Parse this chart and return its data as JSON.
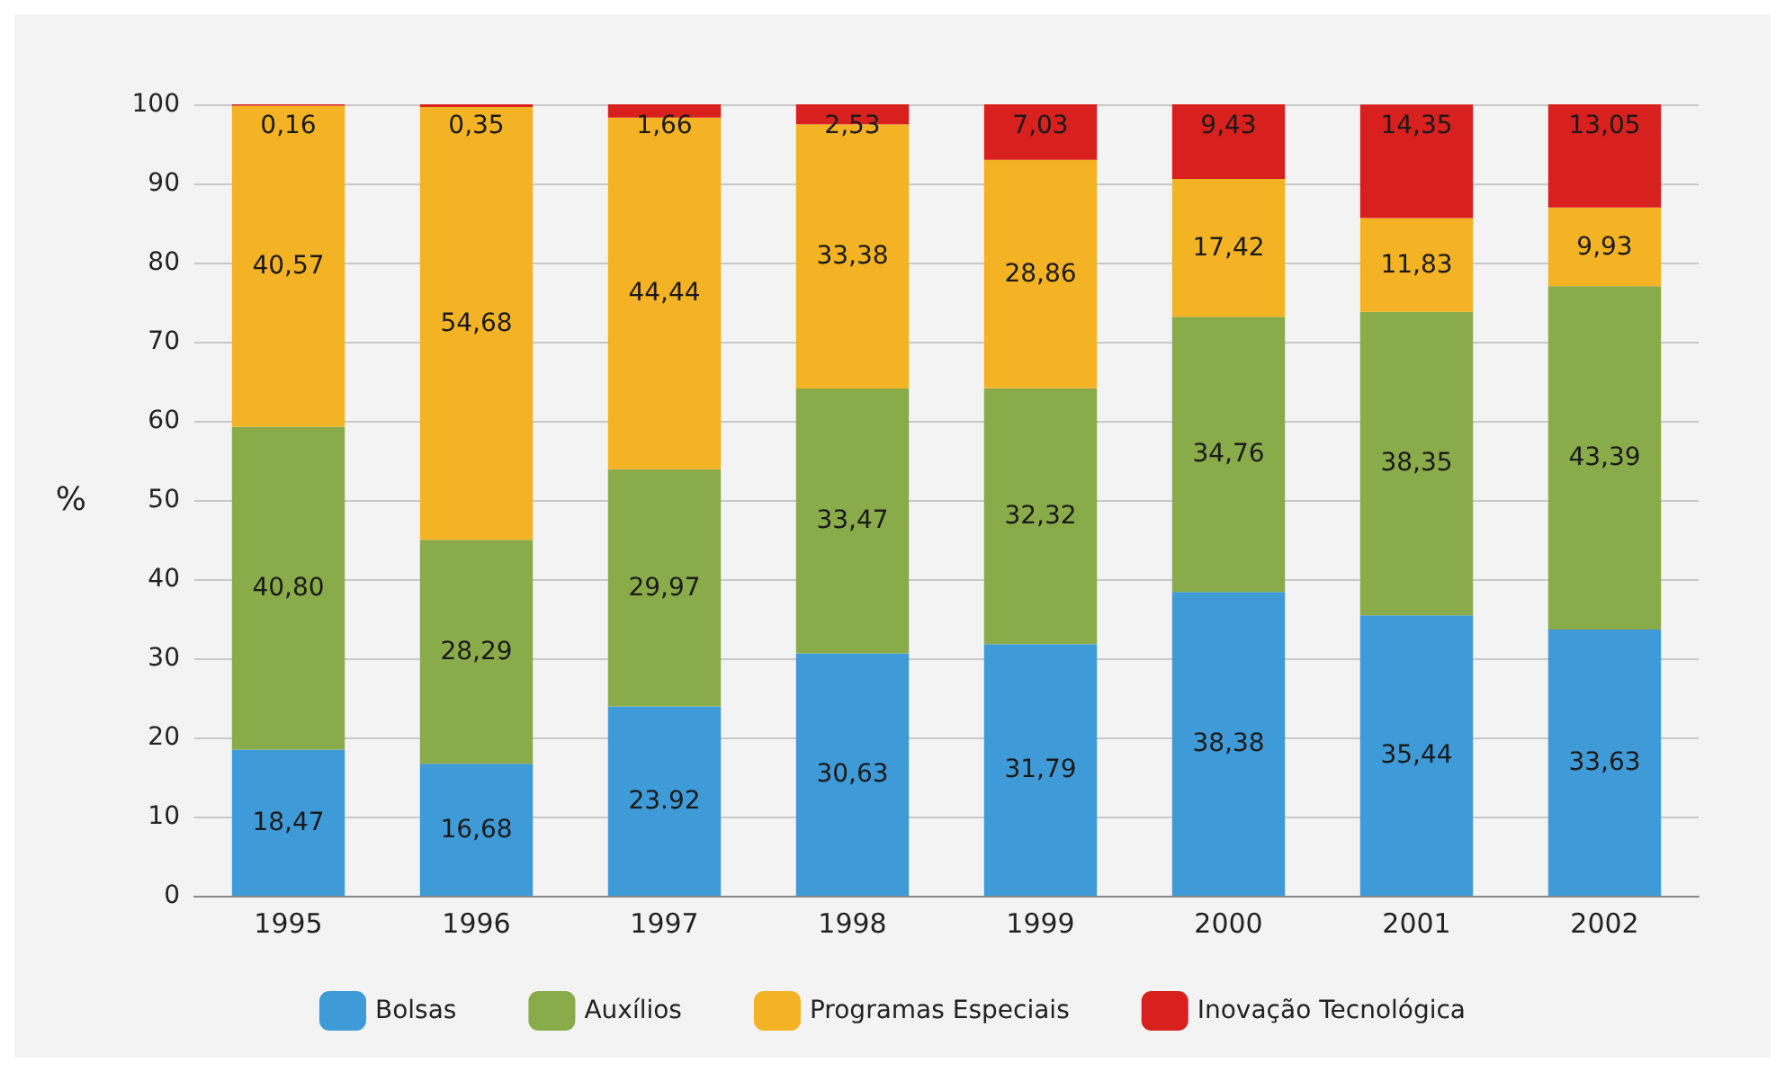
{
  "chart_data": {
    "type": "bar",
    "stacked": true,
    "ylabel": "%",
    "categories": [
      "1995",
      "1996",
      "1997",
      "1998",
      "1999",
      "2000",
      "2001",
      "2002"
    ],
    "series": [
      {
        "name": "Bolsas",
        "color": "#3f9ad8",
        "values": [
          18.47,
          16.68,
          23.92,
          30.63,
          31.79,
          38.38,
          35.44,
          33.63
        ],
        "value_labels": [
          "18,47",
          "16,68",
          "23.92",
          "30,63",
          "31,79",
          "38,38",
          "35,44",
          "33,63"
        ]
      },
      {
        "name": "Auxílios",
        "color": "#8aab4a",
        "values": [
          40.8,
          28.29,
          29.97,
          33.47,
          32.32,
          34.76,
          38.35,
          43.39
        ],
        "value_labels": [
          "40,80",
          "28,29",
          "29,97",
          "33,47",
          "32,32",
          "34,76",
          "38,35",
          "43,39"
        ]
      },
      {
        "name": "Programas Especiais",
        "color": "#f4b324",
        "values": [
          40.57,
          54.68,
          44.44,
          33.38,
          28.86,
          17.42,
          11.83,
          9.93
        ],
        "value_labels": [
          "40,57",
          "54,68",
          "44,44",
          "33,38",
          "28,86",
          "17,42",
          "11,83",
          "9,93"
        ]
      },
      {
        "name": "Inovação Tecnológica",
        "color": "#d8201e",
        "values": [
          0.16,
          0.35,
          1.66,
          2.53,
          7.03,
          9.43,
          14.35,
          13.05
        ],
        "value_labels": [
          "0,16",
          "0,35",
          "1,66",
          "2,53",
          "7,03",
          "9,43",
          "14,35",
          "13,05"
        ]
      }
    ],
    "ylim": [
      0,
      100
    ],
    "yticks": [
      0,
      10,
      20,
      30,
      40,
      50,
      60,
      70,
      80,
      90,
      100
    ],
    "grid": "y",
    "legend": "bottom"
  }
}
